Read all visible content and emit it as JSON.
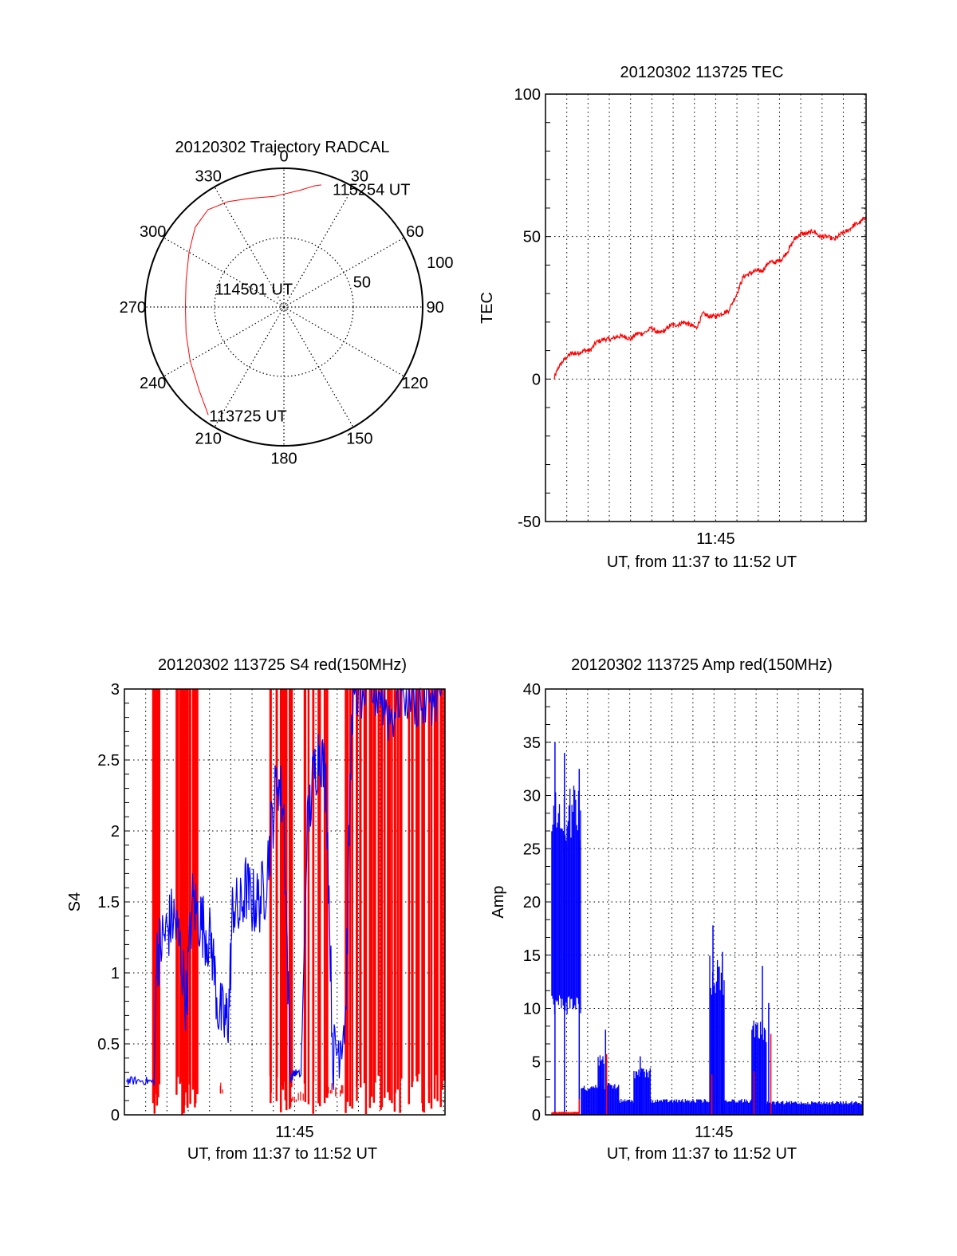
{
  "chart_data": [
    {
      "type": "polar",
      "id": "trajectory",
      "title": "20120302 Trajectory RADCAL",
      "angle_labels": [
        "0",
        "30",
        "60",
        "90",
        "120",
        "150",
        "180",
        "210",
        "240",
        "270",
        "300",
        "330"
      ],
      "angle_values_deg": [
        0,
        30,
        60,
        90,
        120,
        150,
        180,
        210,
        240,
        270,
        300,
        330
      ],
      "radial_labels": [
        "50",
        "100"
      ],
      "radial_values": [
        50,
        100
      ],
      "rlim": [
        0,
        100
      ],
      "annotations": [
        {
          "text": "115254 UT",
          "az": 22,
          "r": 92
        },
        {
          "text": "114501 UT",
          "az": 285,
          "r": 52
        },
        {
          "text": "113725 UT",
          "az": 215,
          "r": 95
        }
      ],
      "series": [
        {
          "name": "trajectory",
          "color": "#ff0000",
          "points": [
            {
              "az": 215,
              "r": 95
            },
            {
              "az": 225,
              "r": 86
            },
            {
              "az": 240,
              "r": 78
            },
            {
              "az": 255,
              "r": 73
            },
            {
              "az": 270,
              "r": 71
            },
            {
              "az": 285,
              "r": 73
            },
            {
              "az": 300,
              "r": 79
            },
            {
              "az": 312,
              "r": 86
            },
            {
              "az": 322,
              "r": 89
            },
            {
              "az": 332,
              "r": 86
            },
            {
              "az": 343,
              "r": 82
            },
            {
              "az": 355,
              "r": 80
            },
            {
              "az": 8,
              "r": 85
            },
            {
              "az": 14,
              "r": 90
            },
            {
              "az": 17,
              "r": 92
            }
          ]
        }
      ]
    },
    {
      "type": "line",
      "id": "tec",
      "title": "20120302 113725 TEC",
      "xlabel": "UT, from 11:37 to 11:52 UT",
      "ylabel": "TEC",
      "x_tick_labels": [
        "11:45"
      ],
      "x_tick_values_min": [
        8
      ],
      "y_tick_labels": [
        "100",
        "50",
        "0",
        "-50"
      ],
      "y_tick_values": [
        100,
        50,
        0,
        -50
      ],
      "xlim_min": [
        0,
        15.07
      ],
      "ylim": [
        -50,
        100
      ],
      "grid": true,
      "series": [
        {
          "name": "TEC",
          "color": "#ff0000",
          "x_min": [
            0.4,
            0.6,
            0.9,
            1.2,
            1.5,
            1.8,
            2.1,
            2.4,
            2.8,
            3.1,
            3.4,
            3.7,
            4.0,
            4.3,
            4.6,
            5.0,
            5.3,
            5.6,
            5.9,
            6.2,
            6.5,
            6.8,
            7.1,
            7.4,
            7.7,
            8.0,
            8.3,
            8.6,
            9.0,
            9.3,
            9.6,
            9.9,
            10.2,
            10.5,
            10.8,
            11.1,
            11.4,
            11.7,
            12.0,
            12.3,
            12.6,
            12.9,
            13.2,
            13.6,
            13.9,
            14.2,
            14.5,
            14.8,
            15.05
          ],
          "y": [
            0,
            4,
            7,
            9,
            9,
            10,
            10,
            13,
            14,
            14,
            15,
            15,
            14,
            16,
            16,
            18,
            16,
            17,
            19,
            19,
            20,
            19,
            18,
            23,
            22,
            22,
            23,
            24,
            30,
            36,
            37,
            38,
            38,
            41,
            41,
            42,
            45,
            49,
            51,
            51,
            52,
            50,
            50,
            49,
            51,
            52,
            54,
            55,
            57
          ]
        }
      ]
    },
    {
      "type": "line",
      "id": "s4",
      "title": "20120302 113725 S4 red(150MHz)",
      "xlabel": "UT, from 11:37 to 11:52 UT",
      "ylabel": "S4",
      "x_tick_labels": [
        "11:45"
      ],
      "x_tick_values_min": [
        8
      ],
      "y_tick_labels": [
        "3",
        "2.5",
        "2",
        "1.5",
        "1",
        "0.5",
        "0"
      ],
      "y_tick_values": [
        3,
        2.5,
        2,
        1.5,
        1,
        0.5,
        0
      ],
      "xlim_min": [
        0,
        15.07
      ],
      "ylim": [
        0,
        3
      ],
      "grid": true,
      "series": [
        {
          "name": "S4 blue",
          "color": "#0000ff",
          "x_min": [
            0.1,
            0.5,
            1.0,
            1.4,
            1.5,
            1.7,
            2.0,
            2.3,
            2.6,
            2.9,
            3.2,
            3.5,
            3.8,
            4.1,
            4.4,
            4.7,
            4.9,
            5.1,
            5.4,
            5.7,
            6.0,
            6.3,
            6.6,
            6.9,
            7.2,
            7.5,
            7.8,
            8.0,
            8.3,
            8.6,
            8.9,
            9.2,
            9.5,
            9.8,
            10.1,
            10.4,
            10.7,
            11.0,
            11.5,
            12.0,
            12.5,
            13.0,
            13.5,
            14.0,
            14.5,
            15.0
          ],
          "y": [
            0.24,
            0.24,
            0.24,
            0.23,
            1.1,
            1.2,
            1.3,
            1.4,
            1.2,
            0.8,
            1.5,
            1.4,
            1.3,
            1.2,
            0.75,
            0.65,
            0.7,
            1.5,
            1.4,
            1.6,
            1.5,
            1.5,
            1.6,
            2.0,
            2.4,
            2.1,
            0.25,
            0.3,
            0.28,
            2.0,
            2.4,
            2.6,
            2.3,
            0.4,
            0.5,
            0.7,
            2.9,
            3.0,
            3.0,
            3.0,
            2.8,
            3.0,
            3.0,
            2.9,
            3.0,
            3.0
          ]
        },
        {
          "name": "S4 red",
          "color": "#ff0000",
          "x_min": [
            1.3,
            1.4,
            1.5,
            2.5,
            2.6,
            2.8,
            3.0,
            3.1,
            3.3,
            3.4,
            4.5,
            7.0,
            7.3,
            7.5,
            7.6,
            7.7,
            7.8,
            7.9,
            8.0,
            8.3,
            8.6,
            9.0,
            9.2,
            9.4,
            9.7,
            10.0,
            10.3,
            10.5,
            10.8,
            11.0,
            11.3,
            11.6,
            11.9,
            12.2,
            12.5,
            12.8,
            13.1,
            13.4,
            13.7,
            14.0,
            14.3,
            14.6,
            14.9
          ],
          "y": [
            3,
            3,
            3,
            3,
            3,
            3,
            3,
            3,
            3,
            3,
            0.2,
            3,
            3,
            3,
            3,
            3,
            3,
            0.15,
            0.14,
            0.15,
            3,
            3,
            3,
            3,
            0.2,
            0.18,
            0.2,
            3,
            3,
            3,
            3,
            3,
            3,
            3,
            3,
            3,
            3,
            3,
            3,
            3,
            3,
            3,
            3
          ]
        }
      ]
    },
    {
      "type": "line",
      "id": "amp",
      "title": "20120302 113725 Amp red(150MHz)",
      "xlabel": "UT, from 11:37 to 11:52 UT",
      "ylabel": "Amp",
      "x_tick_labels": [
        "11:45"
      ],
      "x_tick_values_min": [
        8
      ],
      "y_tick_labels": [
        "40",
        "35",
        "30",
        "25",
        "20",
        "15",
        "10",
        "5",
        "0"
      ],
      "y_tick_values": [
        40,
        35,
        30,
        25,
        20,
        15,
        10,
        5,
        0
      ],
      "xlim_min": [
        0,
        15.07
      ],
      "ylim": [
        0,
        40
      ],
      "grid": true,
      "series": [
        {
          "name": "Amp blue",
          "color": "#0000ff",
          "segments": [
            {
              "from_min": 0.3,
              "to_min": 1.7,
              "low": 10,
              "high": 31
            },
            {
              "from_min": 1.7,
              "to_min": 3.5,
              "low": 0,
              "high": 3
            },
            {
              "from_min": 2.5,
              "to_min": 2.8,
              "low": 0,
              "high": 6
            },
            {
              "from_min": 3.5,
              "to_min": 4.2,
              "low": 0,
              "high": 1.5
            },
            {
              "from_min": 4.2,
              "to_min": 5.0,
              "low": 0,
              "high": 4.5
            },
            {
              "from_min": 5.0,
              "to_min": 7.8,
              "low": 0,
              "high": 1.5
            },
            {
              "from_min": 7.8,
              "to_min": 8.5,
              "low": 0,
              "high": 15
            },
            {
              "from_min": 8.5,
              "to_min": 9.8,
              "low": 0,
              "high": 1.5
            },
            {
              "from_min": 9.8,
              "to_min": 10.5,
              "low": 0,
              "high": 9
            },
            {
              "from_min": 10.5,
              "to_min": 15.07,
              "low": 0,
              "high": 1.3
            }
          ],
          "peaks": [
            {
              "x_min": 0.45,
              "y": 35
            },
            {
              "x_min": 0.9,
              "y": 34
            },
            {
              "x_min": 1.6,
              "y": 32.5
            },
            {
              "x_min": 2.85,
              "y": 8
            },
            {
              "x_min": 4.5,
              "y": 5.5
            },
            {
              "x_min": 7.95,
              "y": 17.8
            },
            {
              "x_min": 8.4,
              "y": 15.3
            },
            {
              "x_min": 10.3,
              "y": 14
            },
            {
              "x_min": 10.6,
              "y": 10.5
            }
          ]
        },
        {
          "name": "Amp red",
          "color": "#ff0000",
          "segments": [
            {
              "from_min": 0.3,
              "to_min": 1.6,
              "low": 0,
              "high": 0.3
            }
          ],
          "peaks": [
            {
              "x_min": 1.6,
              "y": 1.5
            },
            {
              "x_min": 2.9,
              "y": 5.7
            },
            {
              "x_min": 7.9,
              "y": 3.8
            },
            {
              "x_min": 9.9,
              "y": 4.1
            },
            {
              "x_min": 10.7,
              "y": 7.6
            }
          ]
        }
      ]
    }
  ]
}
